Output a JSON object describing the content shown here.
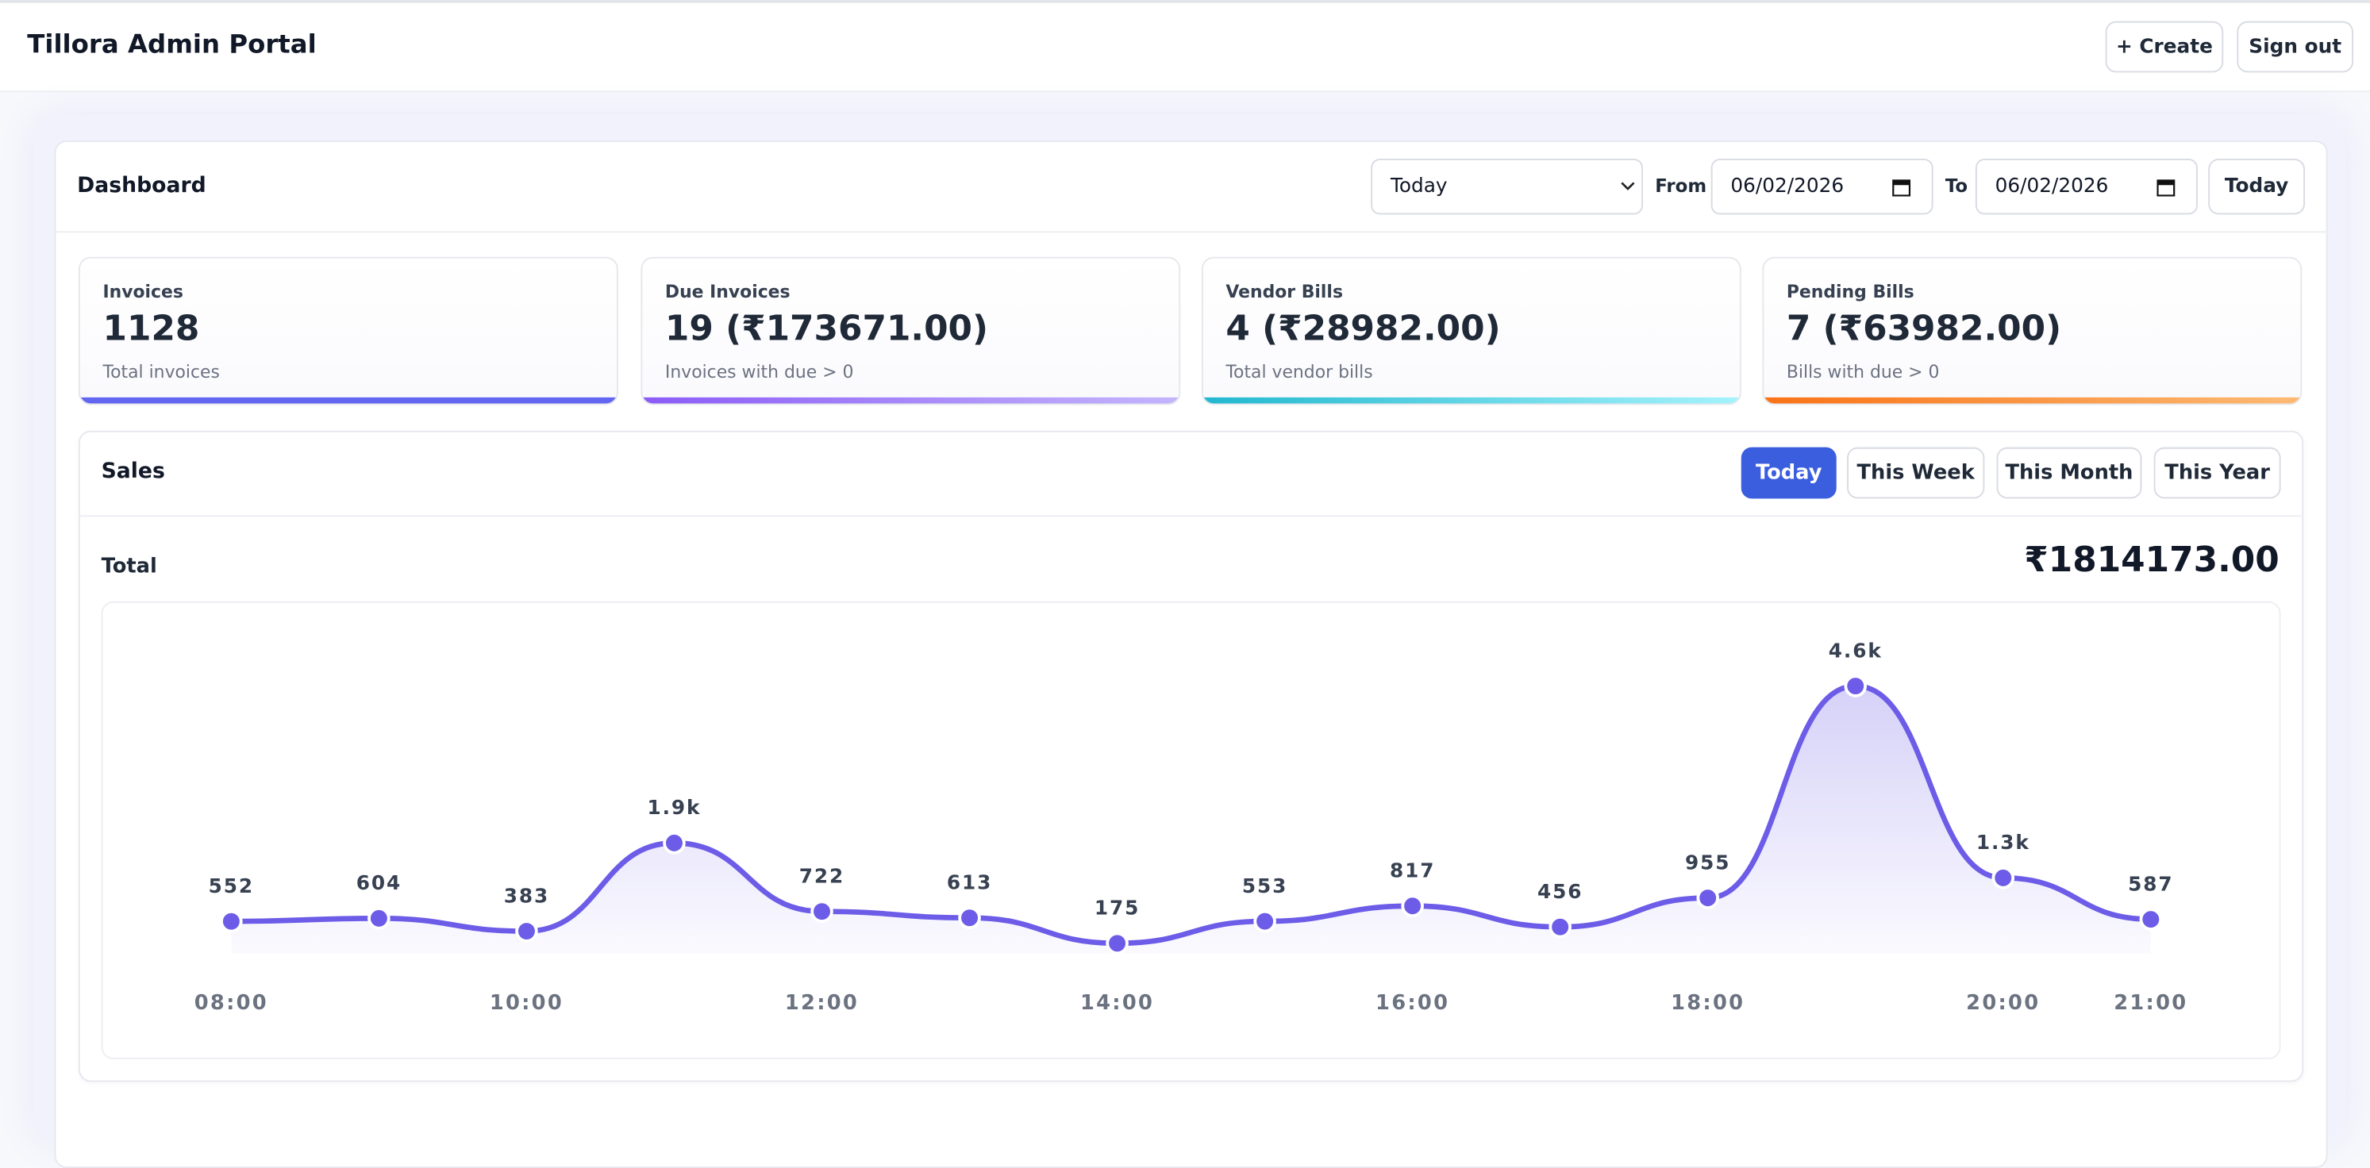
{
  "header": {
    "title": "Tillora Admin Portal",
    "buttons": [
      "+ Create",
      "Sign out"
    ]
  },
  "dashboard": {
    "title": "Dashboard",
    "range_select": "Today",
    "from_label": "From",
    "from_date": "06/02/2026",
    "to_label": "To",
    "to_date": "06/02/2026",
    "today_button": "Today"
  },
  "cards": [
    {
      "label": "Invoices",
      "value": "1128",
      "note": "Total invoices"
    },
    {
      "label": "Due Invoices",
      "value": "19 (₹173671.00)",
      "note": "Invoices with due > 0"
    },
    {
      "label": "Vendor Bills",
      "value": "4 (₹28982.00)",
      "note": "Total vendor bills"
    },
    {
      "label": "Pending Bills",
      "value": "7 (₹63982.00)",
      "note": "Bills with due > 0"
    }
  ],
  "sales": {
    "title": "Sales",
    "tabs": [
      "Today",
      "This Week",
      "This Month",
      "This Year"
    ],
    "active_tab": 0,
    "total_label": "Total",
    "total_value": "₹1814173.00"
  },
  "chart_data": {
    "type": "line",
    "categories": [
      "08:00",
      null,
      "10:00",
      null,
      "12:00",
      null,
      "14:00",
      null,
      "16:00",
      null,
      "18:00",
      null,
      "20:00",
      "21:00"
    ],
    "values": [
      552,
      604,
      383,
      1900,
      722,
      613,
      175,
      553,
      817,
      456,
      955,
      4600,
      1300,
      587
    ],
    "value_labels": [
      "552",
      "604",
      "383",
      "1.9k",
      "722",
      "613",
      "175",
      "553",
      "817",
      "456",
      "955",
      "4.6k",
      "1.3k",
      "587"
    ],
    "color": "#6c5ce7"
  }
}
